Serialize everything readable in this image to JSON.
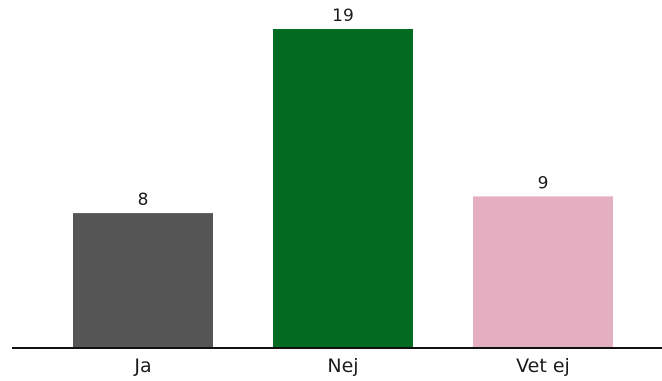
{
  "chart_data": {
    "type": "bar",
    "title": "",
    "xlabel": "",
    "ylabel": "",
    "categories": [
      "Ja",
      "Nej",
      "Vet ej"
    ],
    "values": [
      8,
      19,
      9
    ],
    "data_labels": [
      "8",
      "19",
      "9"
    ],
    "colors": [
      "#555555",
      "#006b21",
      "#e4afc0"
    ],
    "axis_color": "#111111",
    "ylim": [
      0,
      19
    ],
    "grid": false,
    "legend": "none"
  }
}
